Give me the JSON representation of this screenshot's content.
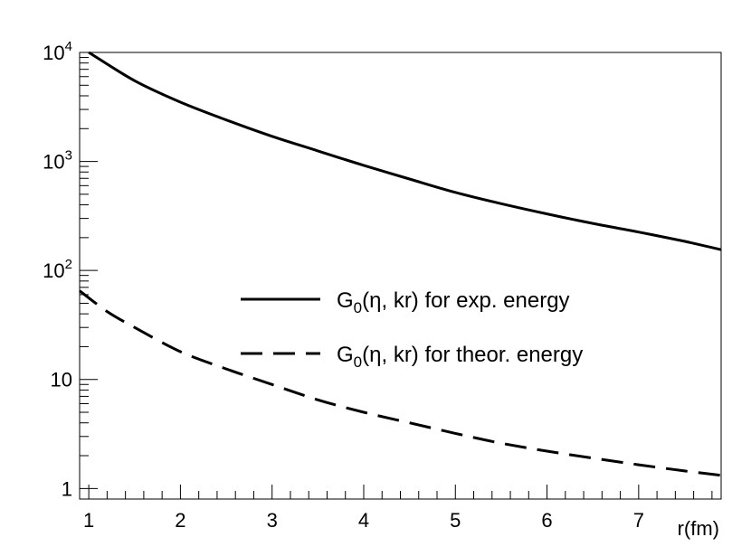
{
  "chart_data": {
    "type": "line",
    "title": "",
    "xlabel": "r(fm)",
    "ylabel": "",
    "xlim": [
      0.9,
      7.9
    ],
    "ylim": [
      0.8,
      10000
    ],
    "yscale": "log",
    "grid": false,
    "legend_position": "center-right",
    "x_ticks": [
      1,
      2,
      3,
      4,
      5,
      6,
      7
    ],
    "x_tick_labels": [
      "1",
      "2",
      "3",
      "4",
      "5",
      "6",
      "7"
    ],
    "y_ticks": [
      1,
      10,
      100,
      1000,
      10000
    ],
    "y_tick_labels": [
      {
        "base": "1",
        "exp": ""
      },
      {
        "base": "10",
        "exp": ""
      },
      {
        "base": "10",
        "exp": "2"
      },
      {
        "base": "10",
        "exp": "3"
      },
      {
        "base": "10",
        "exp": "4"
      }
    ],
    "series": [
      {
        "name_main": "G",
        "name_sub": "0",
        "name_rest": "(η, kr) for exp. energy",
        "style": "solid",
        "color": "#000000",
        "x": [
          1.0,
          1.5,
          2.0,
          2.5,
          3.0,
          3.5,
          4.0,
          4.5,
          5.0,
          5.5,
          6.0,
          6.5,
          7.0,
          7.5,
          7.9
        ],
        "y": [
          10000,
          5500,
          3500,
          2400,
          1700,
          1250,
          920,
          690,
          520,
          410,
          330,
          270,
          225,
          185,
          155
        ]
      },
      {
        "name_main": "G",
        "name_sub": "0",
        "name_rest": "(η, kr) for theor. energy",
        "style": "dashed",
        "color": "#000000",
        "x": [
          0.9,
          1.2,
          1.5,
          2.0,
          2.5,
          3.0,
          3.5,
          4.0,
          4.5,
          5.0,
          5.5,
          6.0,
          6.5,
          7.0,
          7.5,
          7.9
        ],
        "y": [
          65,
          42,
          30,
          18,
          12.5,
          9,
          6.5,
          5,
          4,
          3.2,
          2.6,
          2.2,
          1.9,
          1.65,
          1.45,
          1.32
        ]
      }
    ]
  }
}
